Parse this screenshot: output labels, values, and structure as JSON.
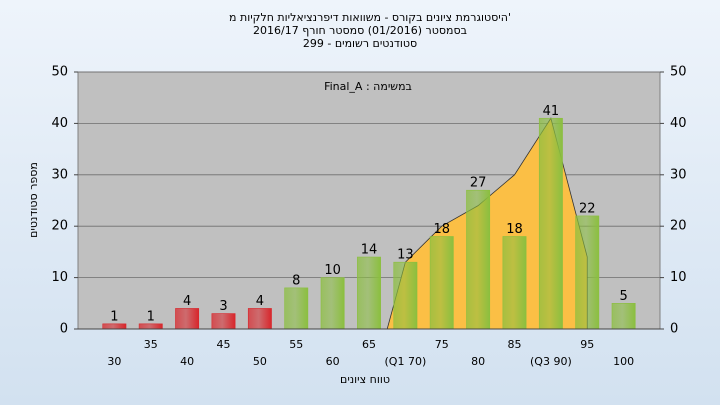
{
  "chart_data": {
    "type": "bar",
    "title": [
      "היסטוגרמת ציונים בקורס - משוואות דיפרנציאליות חלקיות מ'",
      "בסמסטר  (01/2016)  סמסטר חורף 2016/17",
      "סטודנטים רשומים - 299"
    ],
    "annotation": "Final_A : במשימה",
    "x_label": "טווח ציונים",
    "y_label": "מספר סטודנטים",
    "categories": [
      "30",
      "35",
      "40",
      "45",
      "50",
      "55",
      "60",
      "65",
      "(Q1 70)",
      "75",
      "80",
      "85",
      "(Q3 90)",
      "95",
      "100"
    ],
    "values": [
      1,
      1,
      4,
      3,
      4,
      8,
      10,
      14,
      13,
      18,
      27,
      18,
      41,
      22,
      5
    ],
    "colors": [
      "#d8262b",
      "#d8262b",
      "#d8262b",
      "#d8262b",
      "#d8262b",
      "#8bbf3f",
      "#8bbf3f",
      "#8bbf3f",
      "#8bbf3f",
      "#8bbf3f",
      "#8bbf3f",
      "#8bbf3f",
      "#8bbf3f",
      "#8bbf3f",
      "#8bbf3f"
    ],
    "area": {
      "color": "#fbbf45",
      "values": [
        null,
        null,
        null,
        null,
        null,
        null,
        null,
        null,
        13,
        20,
        24,
        30,
        41,
        14,
        null
      ]
    },
    "ylim": [
      0,
      50
    ],
    "yticks": [
      0,
      10,
      20,
      30,
      40,
      50
    ],
    "y2lim": [
      0,
      50
    ],
    "y2ticks": [
      0,
      10,
      20,
      30,
      40,
      50
    ],
    "grid": true
  }
}
